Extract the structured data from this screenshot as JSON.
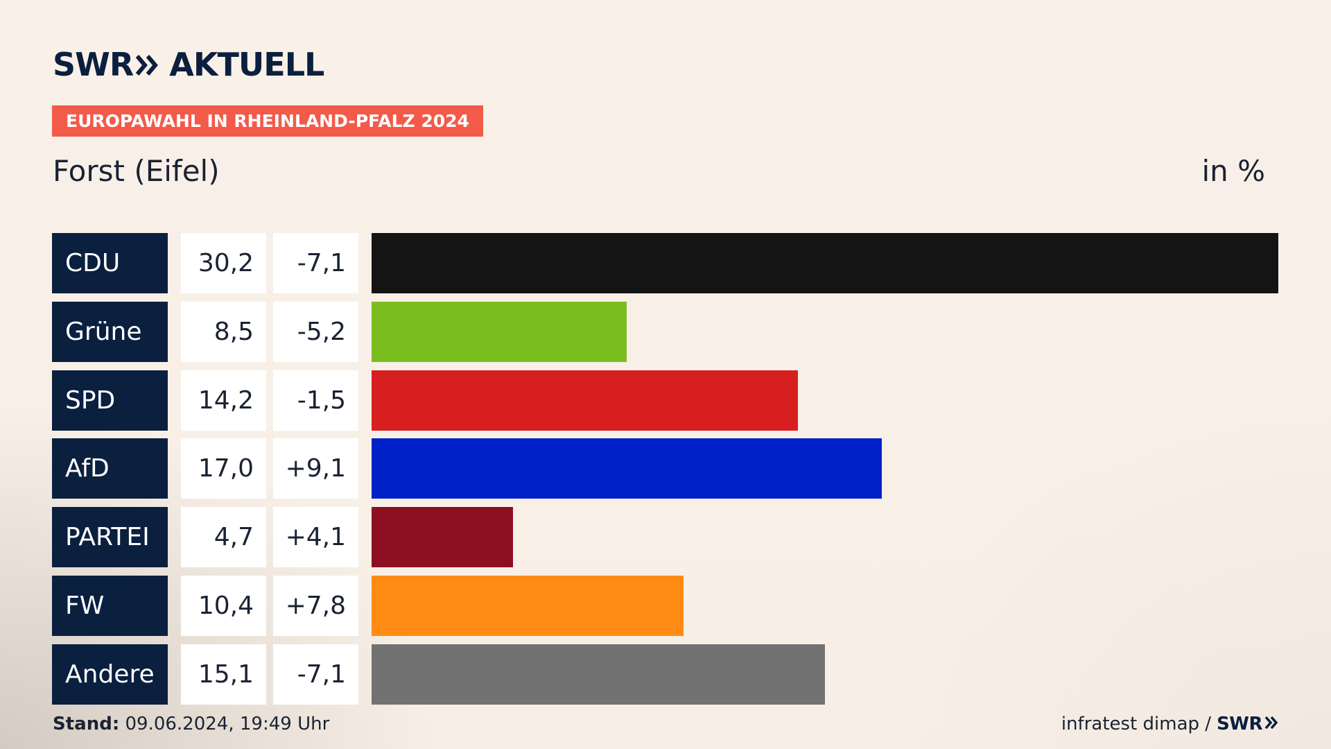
{
  "brand": {
    "name_left": "SWR",
    "name_right": "AKTUELL",
    "color": "#0b1f3f"
  },
  "tagline": "EUROPAWAHL IN RHEINLAND-PFALZ 2024",
  "region": "Forst (Eifel)",
  "unit": "in %",
  "footer": {
    "stand_label": "Stand:",
    "stand_value": "09.06.2024, 19:49 Uhr",
    "source": "infratest dimap /",
    "source_brand": "SWR"
  },
  "chart_data": {
    "type": "bar",
    "orientation": "horizontal",
    "categories": [
      "CDU",
      "Grüne",
      "SPD",
      "AfD",
      "PARTEI",
      "FW",
      "Andere"
    ],
    "values": [
      30.2,
      8.5,
      14.2,
      17.0,
      4.7,
      10.4,
      15.1
    ],
    "value_labels": [
      "30,2",
      "8,5",
      "14,2",
      "17,0",
      "4,7",
      "10,4",
      "15,1"
    ],
    "change_labels": [
      "-7,1",
      "-5,2",
      "-1,5",
      "+9,1",
      "+4,1",
      "+7,8",
      "-7,1"
    ],
    "colors": [
      "#141414",
      "#7abd1e",
      "#d71f1f",
      "#0021c8",
      "#8d0f22",
      "#ff8b14",
      "#727272"
    ],
    "xlim": [
      0,
      30.2
    ],
    "grid": false,
    "legend": "none"
  }
}
